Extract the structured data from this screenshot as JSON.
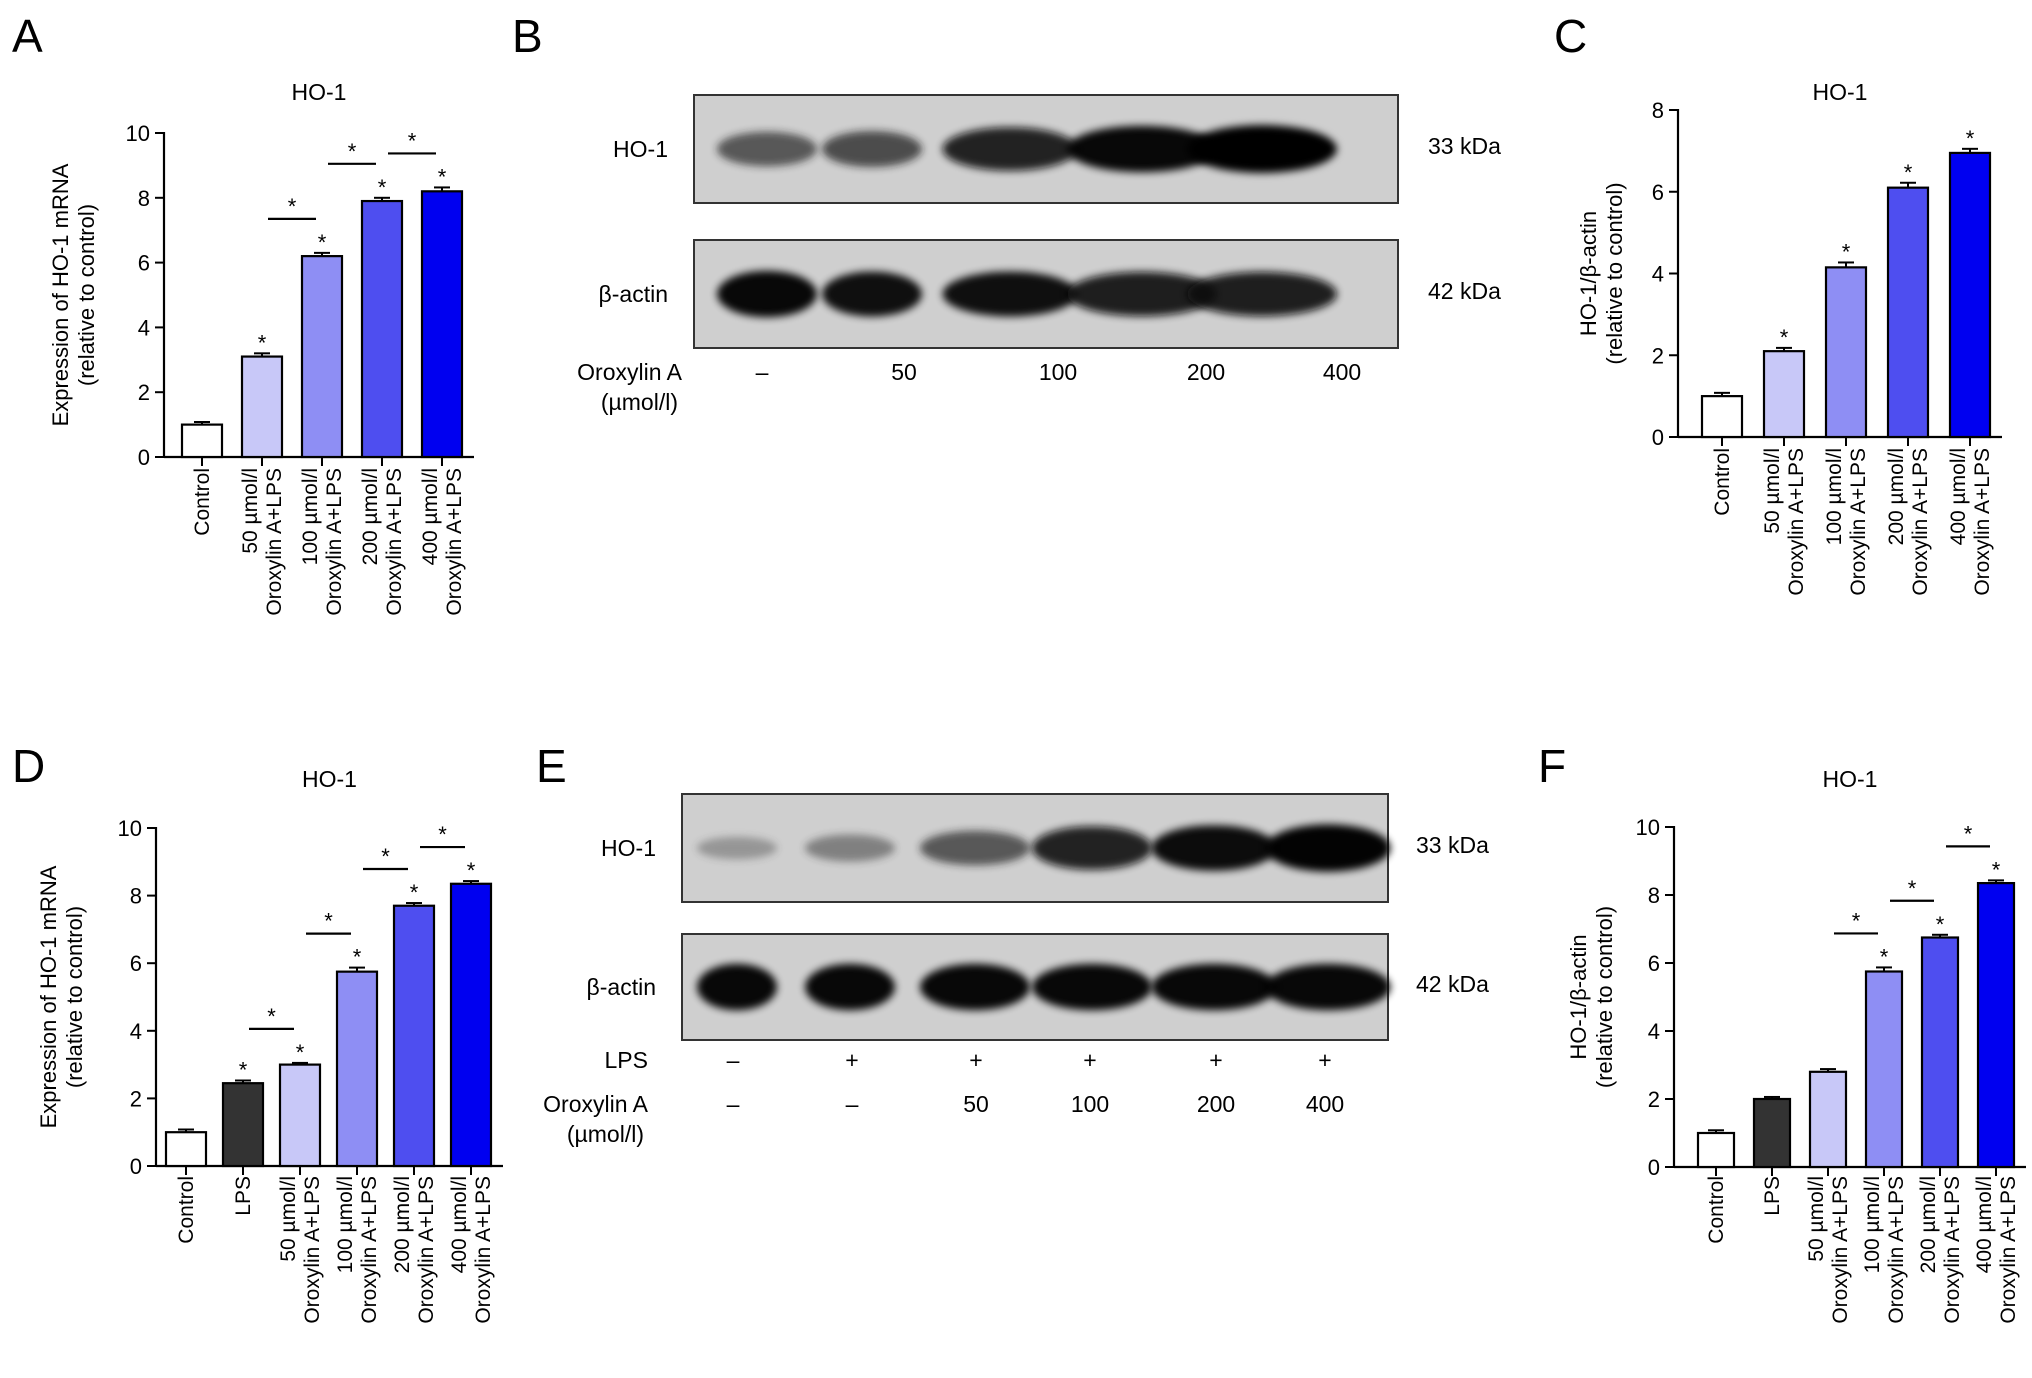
{
  "panels": {
    "A": "A",
    "B": "B",
    "C": "C",
    "D": "D",
    "E": "E",
    "F": "F"
  },
  "chart_data": [
    {
      "panel": "A",
      "type": "bar",
      "title": "HO-1",
      "ylabel": [
        "Expression of HO-1 mRNA",
        "(relative to control)"
      ],
      "ylim": [
        0,
        10
      ],
      "yticks": [
        "0",
        "2",
        "4",
        "6",
        "8",
        "10"
      ],
      "categories": [
        [
          "Control"
        ],
        [
          "50 µmol/l",
          "Oroxylin A+LPS"
        ],
        [
          "100 µmol/l",
          "Oroxylin A+LPS"
        ],
        [
          "200 µmol/l",
          "Oroxylin A+LPS"
        ],
        [
          "400 µmol/l",
          "Oroxylin A+LPS"
        ]
      ],
      "values": [
        1.0,
        3.1,
        6.2,
        7.9,
        8.2
      ],
      "errors": [
        0.08,
        0.1,
        0.1,
        0.1,
        0.12
      ],
      "colors": [
        "#ffffff",
        "#c8c8f8",
        "#8e8ef4",
        "#4e4ef0",
        "#0000f0"
      ],
      "star_marks": [
        "",
        "*",
        "*",
        "*",
        "*"
      ],
      "comparisons": [
        {
          "from": 1,
          "to": 2,
          "label": "*"
        },
        {
          "from": 2,
          "to": 3,
          "label": "*"
        },
        {
          "from": 3,
          "to": 4,
          "label": "*"
        }
      ]
    },
    {
      "panel": "C",
      "type": "bar",
      "title": "HO-1",
      "ylabel": [
        "HO-1/β-actin",
        "(relative to control)"
      ],
      "ylim": [
        0,
        8
      ],
      "yticks": [
        "0",
        "2",
        "4",
        "6",
        "8"
      ],
      "categories": [
        [
          "Control"
        ],
        [
          "50 µmol/l",
          "Oroxylin A+LPS"
        ],
        [
          "100 µmol/l",
          "Oroxylin A+LPS"
        ],
        [
          "200 µmol/l",
          "Oroxylin A+LPS"
        ],
        [
          "400 µmol/l",
          "Oroxylin A+LPS"
        ]
      ],
      "values": [
        1.0,
        2.1,
        4.15,
        6.1,
        6.95
      ],
      "errors": [
        0.08,
        0.08,
        0.12,
        0.12,
        0.1
      ],
      "colors": [
        "#ffffff",
        "#c8c8f8",
        "#8e8ef4",
        "#4e4ef0",
        "#0000f0"
      ],
      "star_marks": [
        "",
        "*",
        "*",
        "*",
        "*"
      ],
      "comparisons": []
    },
    {
      "panel": "D",
      "type": "bar",
      "title": "HO-1",
      "ylabel": [
        "Expression of HO-1 mRNA",
        "(relative to control)"
      ],
      "ylim": [
        0,
        10
      ],
      "yticks": [
        "0",
        "2",
        "4",
        "6",
        "8",
        "10"
      ],
      "categories": [
        [
          "Control"
        ],
        [
          "LPS"
        ],
        [
          "50 µmol/l",
          "Oroxylin A+LPS"
        ],
        [
          "100 µmol/l",
          "Oroxylin A+LPS"
        ],
        [
          "200 µmol/l",
          "Oroxylin A+LPS"
        ],
        [
          "400 µmol/l",
          "Oroxylin A+LPS"
        ]
      ],
      "values": [
        1.0,
        2.45,
        3.0,
        5.75,
        7.7,
        8.35
      ],
      "errors": [
        0.08,
        0.08,
        0.05,
        0.12,
        0.08,
        0.08
      ],
      "colors": [
        "#ffffff",
        "#333333",
        "#c8c8f8",
        "#8e8ef4",
        "#4e4ef0",
        "#0000f0"
      ],
      "star_marks": [
        "",
        "*",
        "*",
        "*",
        "*",
        "*"
      ],
      "comparisons": [
        {
          "from": 1,
          "to": 2,
          "label": "*"
        },
        {
          "from": 2,
          "to": 3,
          "label": "*"
        },
        {
          "from": 3,
          "to": 4,
          "label": "*"
        },
        {
          "from": 4,
          "to": 5,
          "label": "*"
        }
      ]
    },
    {
      "panel": "F",
      "type": "bar",
      "title": "HO-1",
      "ylabel": [
        "HO-1/β-actin",
        "(relative to control)"
      ],
      "ylim": [
        0,
        10
      ],
      "yticks": [
        "0",
        "2",
        "4",
        "6",
        "8",
        "10"
      ],
      "categories": [
        [
          "Control"
        ],
        [
          "LPS"
        ],
        [
          "50 µmol/l",
          "Oroxylin A+LPS"
        ],
        [
          "100 µmol/l",
          "Oroxylin A+LPS"
        ],
        [
          "200 µmol/l",
          "Oroxylin A+LPS"
        ],
        [
          "400 µmol/l",
          "Oroxylin A+LPS"
        ]
      ],
      "values": [
        1.0,
        2.0,
        2.8,
        5.75,
        6.75,
        8.35
      ],
      "errors": [
        0.08,
        0.06,
        0.08,
        0.12,
        0.08,
        0.08
      ],
      "colors": [
        "#ffffff",
        "#333333",
        "#c8c8f8",
        "#8e8ef4",
        "#4e4ef0",
        "#0000f0"
      ],
      "star_marks": [
        "",
        "",
        "",
        "*",
        "*",
        "*"
      ],
      "comparisons": [
        {
          "from": 2,
          "to": 3,
          "label": "*"
        },
        {
          "from": 3,
          "to": 4,
          "label": "*"
        },
        {
          "from": 4,
          "to": 5,
          "label": "*"
        }
      ]
    }
  ],
  "blots": {
    "B": {
      "rows": [
        {
          "label": "HO-1",
          "kda": "33 kDa",
          "intensity": [
            0.55,
            0.6,
            0.85,
            0.95,
            1.0
          ]
        },
        {
          "label": "β-actin",
          "kda": "42 kDa",
          "intensity": [
            0.95,
            0.9,
            0.9,
            0.88,
            0.88
          ]
        }
      ],
      "treatment_labels": [
        {
          "name": "Oroxylin A",
          "sub": "(µmol/l)",
          "values": [
            "–",
            "50",
            "100",
            "200",
            "400"
          ]
        }
      ]
    },
    "E": {
      "rows": [
        {
          "label": "HO-1",
          "kda": "33 kDa",
          "intensity": [
            0.15,
            0.3,
            0.55,
            0.85,
            0.92,
            0.98
          ]
        },
        {
          "label": "β-actin",
          "kda": "42 kDa",
          "intensity": [
            0.95,
            0.95,
            0.95,
            0.95,
            0.95,
            0.95
          ]
        }
      ],
      "treatment_labels": [
        {
          "name": "LPS",
          "sub": "",
          "values": [
            "–",
            "+",
            "+",
            "+",
            "+",
            "+"
          ]
        },
        {
          "name": "Oroxylin A",
          "sub": "(µmol/l)",
          "values": [
            "–",
            "–",
            "50",
            "100",
            "200",
            "400"
          ]
        }
      ]
    }
  }
}
